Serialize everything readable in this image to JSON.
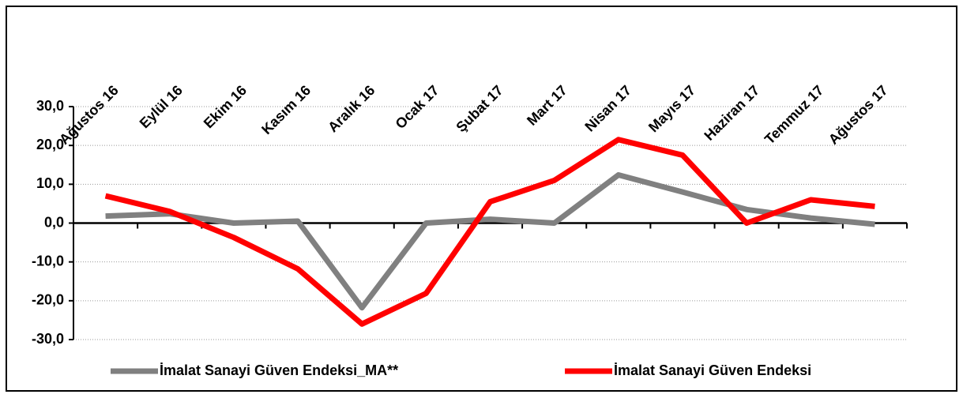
{
  "chart_data": {
    "type": "line",
    "categories": [
      "Ağustos 16",
      "Eylül 16",
      "Ekim 16",
      "Kasım 16",
      "Aralık 16",
      "Ocak 17",
      "Şubat 17",
      "Mart 17",
      "Nisan 17",
      "Mayıs 17",
      "Haziran 17",
      "Temmuz 17",
      "Ağustos 17"
    ],
    "series": [
      {
        "name": "İmalat Sanayi Güven Endeksi_MA**",
        "color": "#808080",
        "values": [
          1.8,
          2.4,
          0.0,
          0.5,
          -21.8,
          0.0,
          1.0,
          0.0,
          12.4,
          8.0,
          3.5,
          1.3,
          -0.3
        ]
      },
      {
        "name": "İmalat Sanayi Güven Endeksi",
        "color": "#ff0000",
        "values": [
          7.0,
          3.0,
          -3.7,
          -11.8,
          -26.0,
          -18.1,
          5.5,
          11.0,
          21.5,
          17.5,
          0.0,
          6.0,
          4.3
        ]
      }
    ],
    "ylim": [
      -30,
      30
    ],
    "yticks": [
      {
        "value": -30,
        "label": "-30,0"
      },
      {
        "value": -20,
        "label": "-20,0"
      },
      {
        "value": -10,
        "label": "-10,0"
      },
      {
        "value": 0,
        "label": "0,0"
      },
      {
        "value": 10,
        "label": "10,0"
      },
      {
        "value": 20,
        "label": "20,0"
      },
      {
        "value": 30,
        "label": "30,0"
      }
    ],
    "grid": true,
    "legend": "bottom"
  }
}
